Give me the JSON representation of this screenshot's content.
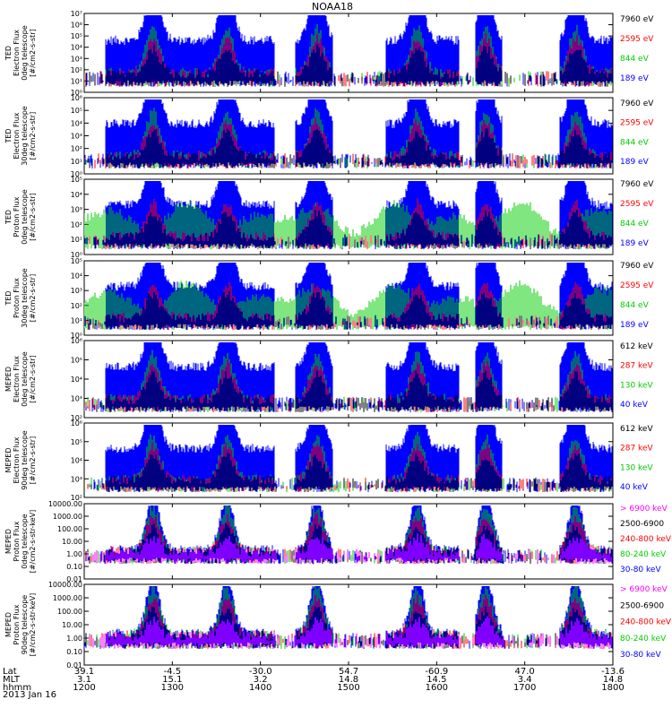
{
  "title": "NOAA18",
  "date_label": "2013 Jan 16",
  "colors": {
    "blue": "#0000ff",
    "red": "#ff0000",
    "green": "#00cc00",
    "black": "#000000",
    "magenta": "#ff00ff"
  },
  "axis_rows": [
    {
      "label": "Lat",
      "values": [
        "39.1",
        "-4.5",
        "-30.0",
        "54.7",
        "-60.9",
        "47.0",
        "-13.6"
      ]
    },
    {
      "label": "MLT",
      "values": [
        "3.1",
        "15.1",
        "3.2",
        "14.8",
        "14.5",
        "3.4",
        "14.8"
      ]
    },
    {
      "label": "hhmm",
      "values": [
        "1200",
        "1300",
        "1400",
        "1500",
        "1600",
        "1700",
        "1800"
      ]
    }
  ],
  "chart_data": [
    {
      "type": "scatter",
      "ylabel": [
        "TED",
        "Electron Flux",
        "0deg telescope",
        "[#/cm2-s-str]"
      ],
      "yscale": "log",
      "ylim": [
        1,
        10000000
      ],
      "yticks": [
        "10⁰",
        "10¹",
        "10²",
        "10³",
        "10⁴",
        "10⁵",
        "10⁶",
        "10⁷"
      ],
      "xlim": [
        "12:00",
        "18:00"
      ],
      "legend": [
        {
          "text": "7960 eV",
          "color": "#000000"
        },
        {
          "text": "2595 eV",
          "color": "#ff0000"
        },
        {
          "text": "844 eV",
          "color": "#00cc00"
        },
        {
          "text": "189 eV",
          "color": "#0000ff"
        }
      ]
    },
    {
      "type": "scatter",
      "ylabel": [
        "TED",
        "Electron Flux",
        "30deg telescope",
        "[#/cm2-s-str]"
      ],
      "yscale": "log",
      "ylim": [
        1,
        1000000
      ],
      "yticks": [
        "10⁰",
        "10¹",
        "10²",
        "10³",
        "10⁴",
        "10⁵",
        "10⁶"
      ],
      "xlim": [
        "12:00",
        "18:00"
      ],
      "legend": [
        {
          "text": "7960 eV",
          "color": "#000000"
        },
        {
          "text": "2595 eV",
          "color": "#ff0000"
        },
        {
          "text": "844 eV",
          "color": "#00cc00"
        },
        {
          "text": "189 eV",
          "color": "#0000ff"
        }
      ]
    },
    {
      "type": "scatter",
      "ylabel": [
        "TED",
        "Proton Flux",
        "0deg telescope",
        "[#/cm2-s-str]"
      ],
      "yscale": "log",
      "ylim": [
        1,
        100000
      ],
      "yticks": [
        "10⁰",
        "10¹",
        "10²",
        "10³",
        "10⁴",
        "10⁵"
      ],
      "xlim": [
        "12:00",
        "18:00"
      ],
      "legend": [
        {
          "text": "7960 eV",
          "color": "#000000"
        },
        {
          "text": "2595 eV",
          "color": "#ff0000"
        },
        {
          "text": "844 eV",
          "color": "#00cc00"
        },
        {
          "text": "189 eV",
          "color": "#0000ff"
        }
      ]
    },
    {
      "type": "scatter",
      "ylabel": [
        "TED",
        "Proton Flux",
        "30deg telescope",
        "[#/cm2-s-str]"
      ],
      "yscale": "log",
      "ylim": [
        1,
        100000
      ],
      "yticks": [
        "10⁰",
        "10¹",
        "10²",
        "10³",
        "10⁴",
        "10⁵"
      ],
      "xlim": [
        "12:00",
        "18:00"
      ],
      "legend": [
        {
          "text": "7960 eV",
          "color": "#000000"
        },
        {
          "text": "2595 eV",
          "color": "#ff0000"
        },
        {
          "text": "844 eV",
          "color": "#00cc00"
        },
        {
          "text": "189 eV",
          "color": "#0000ff"
        }
      ]
    },
    {
      "type": "scatter",
      "ylabel": [
        "MEPED",
        "Electron Flux",
        "0deg telescope",
        "[#/cm2-s-str]"
      ],
      "yscale": "log",
      "ylim": [
        100,
        1000000
      ],
      "yticks": [
        "10²",
        "10³",
        "10⁴",
        "10⁵",
        "10⁶"
      ],
      "xlim": [
        "12:00",
        "18:00"
      ],
      "legend": [
        {
          "text": "612 keV",
          "color": "#000000"
        },
        {
          "text": "287 keV",
          "color": "#ff0000"
        },
        {
          "text": "130 keV",
          "color": "#00cc00"
        },
        {
          "text": "40 keV",
          "color": "#0000ff"
        }
      ]
    },
    {
      "type": "scatter",
      "ylabel": [
        "MEPED",
        "Electron Flux",
        "90deg telescope",
        "[#/cm2-s-str]"
      ],
      "yscale": "log",
      "ylim": [
        100,
        1000000
      ],
      "yticks": [
        "10²",
        "10³",
        "10⁴",
        "10⁵",
        "10⁶"
      ],
      "xlim": [
        "12:00",
        "18:00"
      ],
      "legend": [
        {
          "text": "612 keV",
          "color": "#000000"
        },
        {
          "text": "287 keV",
          "color": "#ff0000"
        },
        {
          "text": "130 keV",
          "color": "#00cc00"
        },
        {
          "text": "40 keV",
          "color": "#0000ff"
        }
      ]
    },
    {
      "type": "scatter",
      "ylabel": [
        "MEPED",
        "Proton Flux",
        "0deg telescope",
        "[#/cm2-s-str-keV]"
      ],
      "yscale": "log",
      "ylim": [
        0.01,
        10000
      ],
      "yticks": [
        "0.01",
        "0.10",
        "1.00",
        "10.00",
        "100.00",
        "1000.00",
        "10000.00"
      ],
      "xlim": [
        "12:00",
        "18:00"
      ],
      "legend": [
        {
          "text": "> 6900 keV",
          "color": "#ff00ff"
        },
        {
          "text": "2500-6900",
          "color": "#000000"
        },
        {
          "text": "240-800 keV",
          "color": "#ff0000"
        },
        {
          "text": "80-240 keV",
          "color": "#00cc00"
        },
        {
          "text": "30-80 keV",
          "color": "#0000ff"
        }
      ]
    },
    {
      "type": "scatter",
      "ylabel": [
        "MEPED",
        "Proton Flux",
        "90deg telescope",
        "[#/cm2-s-str-keV]"
      ],
      "yscale": "log",
      "ylim": [
        0.01,
        10000
      ],
      "yticks": [
        "0.01",
        "0.10",
        "1.00",
        "10.00",
        "100.00",
        "1000.00",
        "10000.00"
      ],
      "xlim": [
        "12:00",
        "18:00"
      ],
      "legend": [
        {
          "text": "> 6900 keV",
          "color": "#ff00ff"
        },
        {
          "text": "2500-6900",
          "color": "#000000"
        },
        {
          "text": "240-800 keV",
          "color": "#ff0000"
        },
        {
          "text": "80-240 keV",
          "color": "#00cc00"
        },
        {
          "text": "30-80 keV",
          "color": "#0000ff"
        }
      ]
    }
  ]
}
